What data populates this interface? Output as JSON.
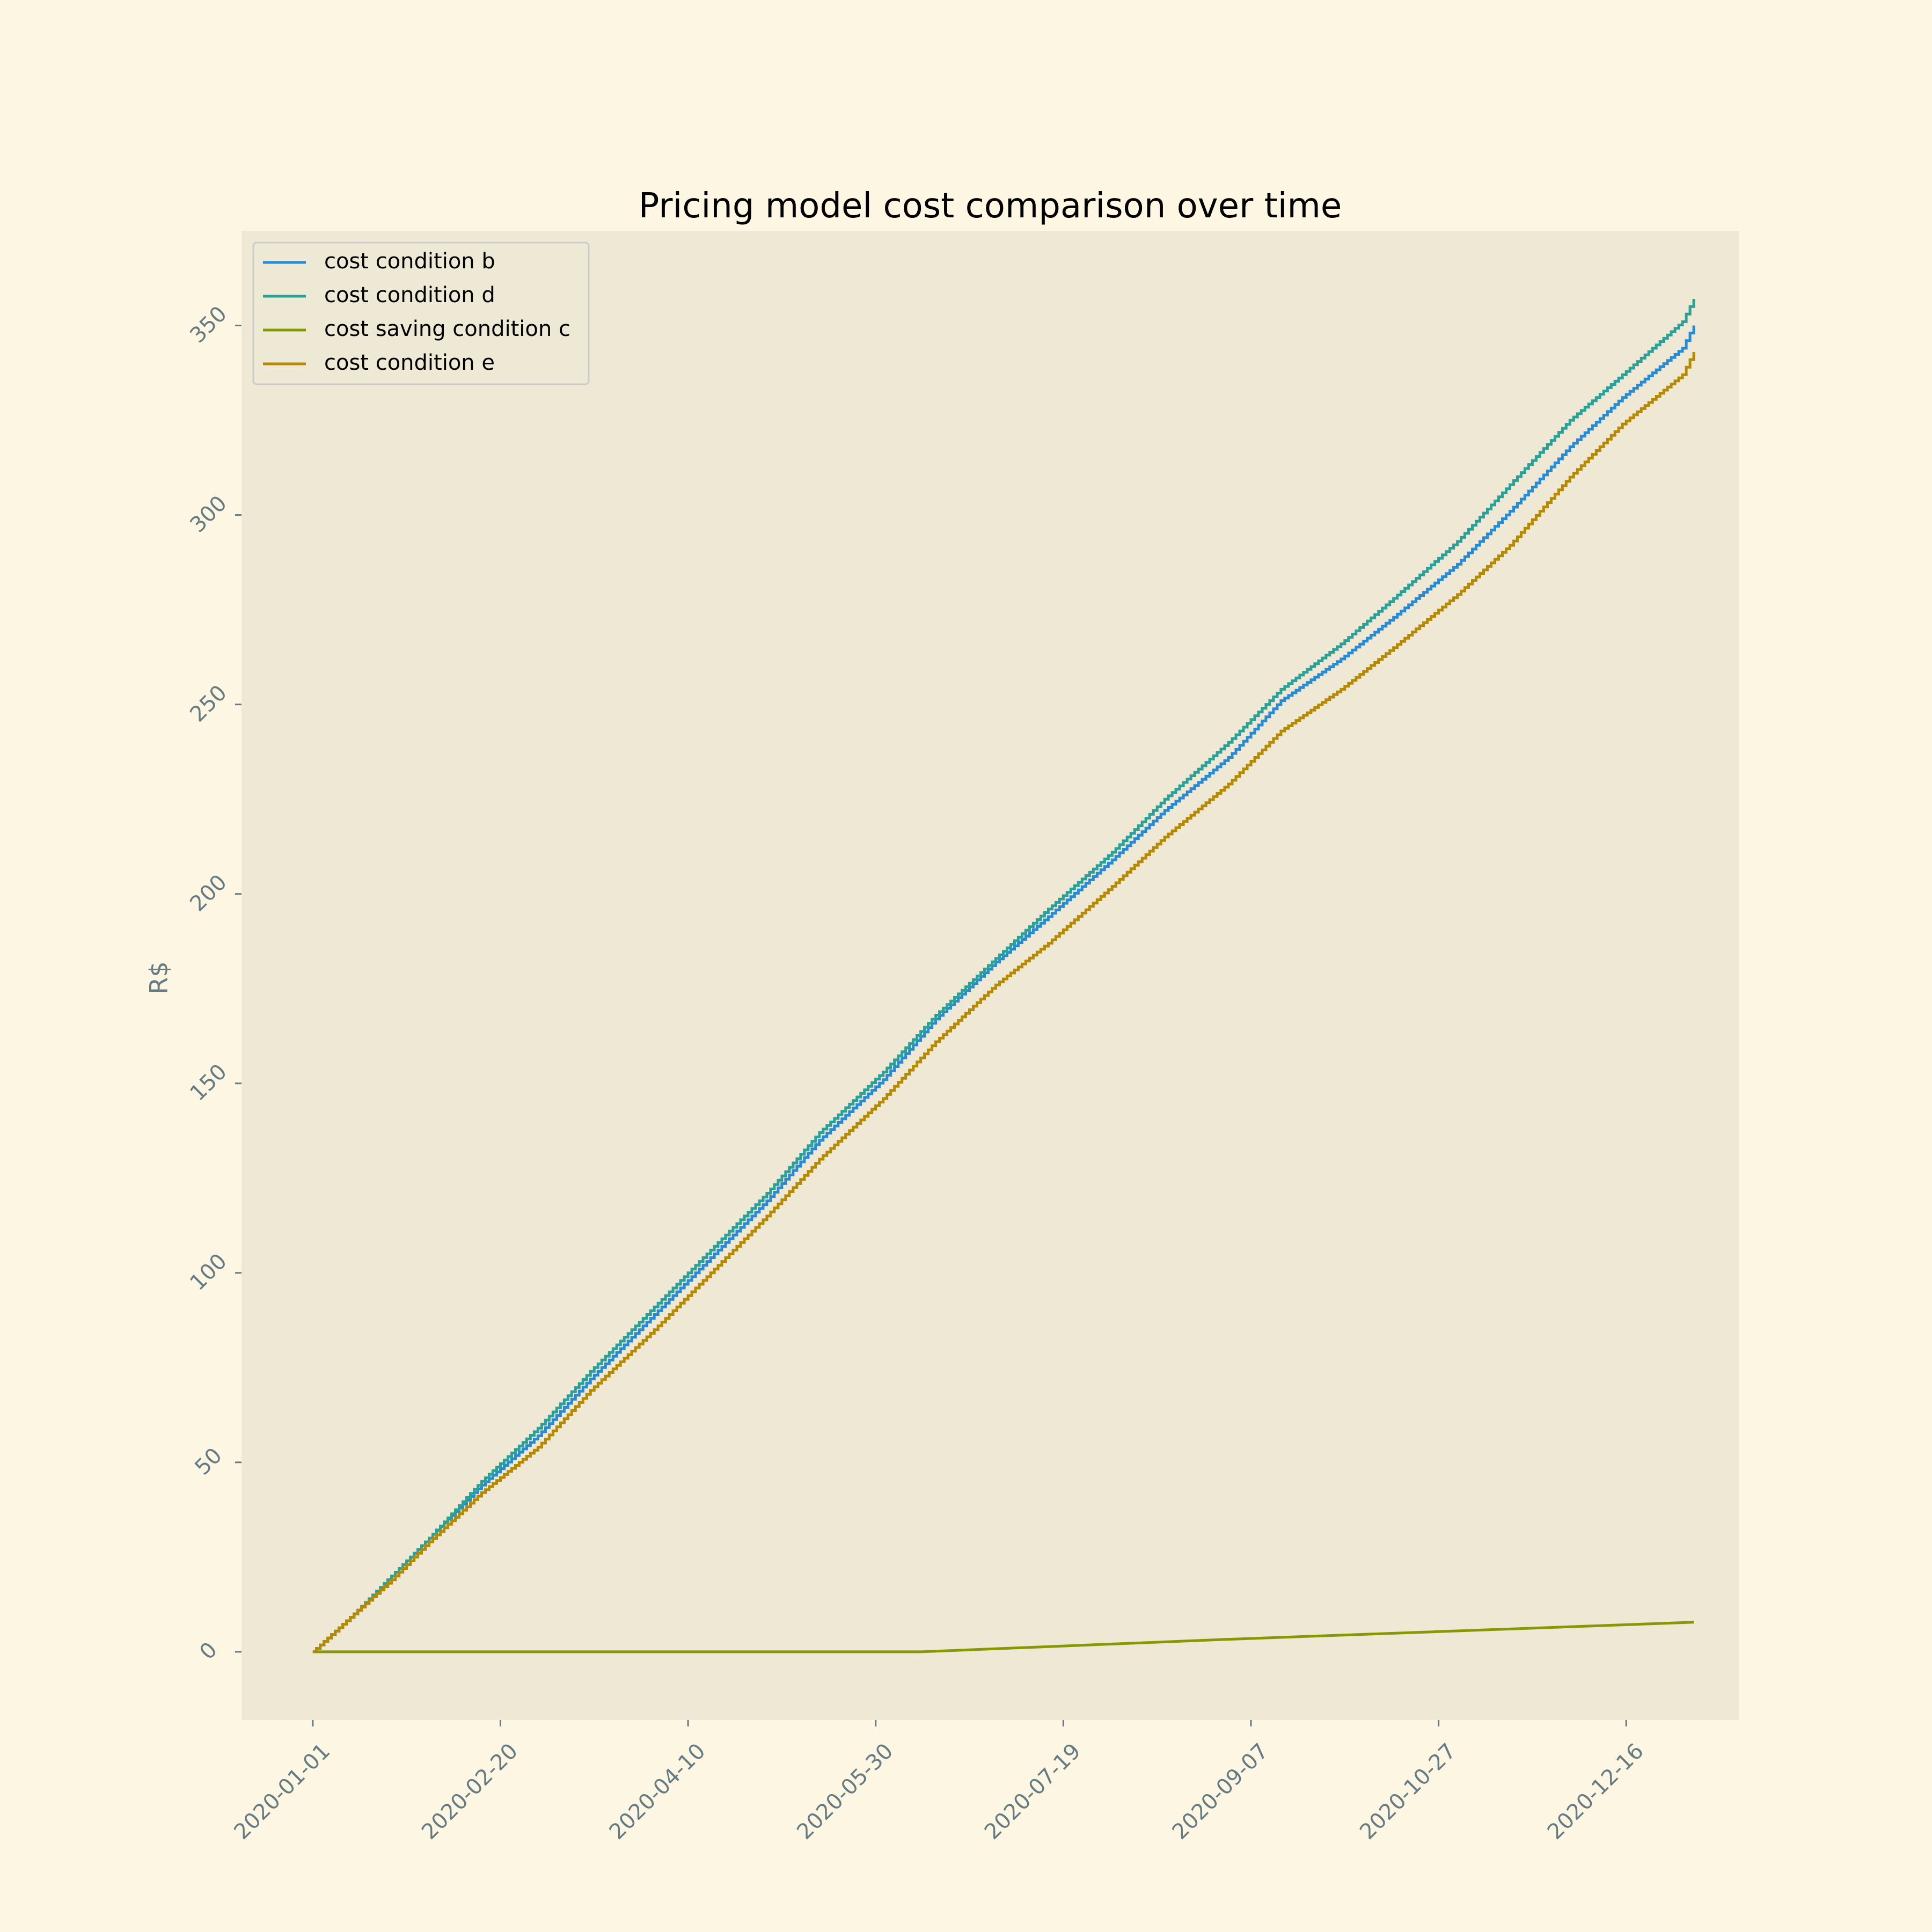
{
  "chart_data": {
    "type": "line",
    "title": "Pricing model cost comparison over time",
    "xlabel": "",
    "ylabel": "R$",
    "x_ticks": [
      "2020-01-01",
      "2020-02-20",
      "2020-04-10",
      "2020-05-30",
      "2020-07-19",
      "2020-09-07",
      "2020-10-27",
      "2020-12-16"
    ],
    "y_ticks": [
      0,
      50,
      100,
      150,
      200,
      250,
      300,
      350
    ],
    "xlim": [
      "2019-12-13",
      "2021-01-15"
    ],
    "ylim": [
      -18,
      375
    ],
    "grid": false,
    "legend_position": "top-left",
    "series": [
      {
        "name": "cost condition b",
        "color": "#268bd2",
        "step": true,
        "points": [
          [
            "2020-01-01",
            0
          ],
          [
            "2020-01-12",
            10
          ],
          [
            "2020-01-22",
            20
          ],
          [
            "2020-02-01",
            30
          ],
          [
            "2020-02-15",
            44
          ],
          [
            "2020-03-01",
            57
          ],
          [
            "2020-03-15",
            72
          ],
          [
            "2020-04-01",
            89
          ],
          [
            "2020-04-15",
            103
          ],
          [
            "2020-05-01",
            119
          ],
          [
            "2020-05-15",
            135
          ],
          [
            "2020-06-01",
            151
          ],
          [
            "2020-06-15",
            167
          ],
          [
            "2020-07-01",
            182
          ],
          [
            "2020-07-15",
            194
          ],
          [
            "2020-08-01",
            209
          ],
          [
            "2020-08-15",
            222
          ],
          [
            "2020-09-01",
            236
          ],
          [
            "2020-09-15",
            251
          ],
          [
            "2020-10-01",
            262
          ],
          [
            "2020-10-15",
            273
          ],
          [
            "2020-11-01",
            287
          ],
          [
            "2020-11-15",
            301
          ],
          [
            "2020-12-01",
            318
          ],
          [
            "2020-12-15",
            331
          ],
          [
            "2020-12-31",
            344
          ],
          [
            "2021-01-03",
            350
          ]
        ]
      },
      {
        "name": "cost condition d",
        "color": "#2aa198",
        "step": true,
        "points": [
          [
            "2020-01-01",
            0
          ],
          [
            "2020-01-12",
            10
          ],
          [
            "2020-01-22",
            20
          ],
          [
            "2020-02-01",
            30
          ],
          [
            "2020-02-15",
            45
          ],
          [
            "2020-03-01",
            59
          ],
          [
            "2020-03-15",
            74
          ],
          [
            "2020-04-01",
            91
          ],
          [
            "2020-04-15",
            105
          ],
          [
            "2020-05-01",
            121
          ],
          [
            "2020-05-15",
            137
          ],
          [
            "2020-06-01",
            153
          ],
          [
            "2020-06-15",
            168
          ],
          [
            "2020-07-01",
            183
          ],
          [
            "2020-07-15",
            196
          ],
          [
            "2020-08-01",
            211
          ],
          [
            "2020-08-15",
            225
          ],
          [
            "2020-09-01",
            240
          ],
          [
            "2020-09-15",
            254
          ],
          [
            "2020-10-01",
            266
          ],
          [
            "2020-10-15",
            278
          ],
          [
            "2020-11-01",
            293
          ],
          [
            "2020-11-15",
            308
          ],
          [
            "2020-12-01",
            325
          ],
          [
            "2020-12-15",
            337
          ],
          [
            "2020-12-31",
            351
          ],
          [
            "2021-01-03",
            357
          ]
        ]
      },
      {
        "name": "cost saving condition c",
        "color": "#859900",
        "step": false,
        "points": [
          [
            "2020-01-01",
            0
          ],
          [
            "2020-06-11",
            0
          ],
          [
            "2020-09-01",
            3.3
          ],
          [
            "2021-01-03",
            7.8
          ]
        ]
      },
      {
        "name": "cost condition e",
        "color": "#b58900",
        "step": true,
        "points": [
          [
            "2020-01-01",
            0
          ],
          [
            "2020-01-12",
            10
          ],
          [
            "2020-01-22",
            19
          ],
          [
            "2020-02-01",
            29
          ],
          [
            "2020-02-15",
            42
          ],
          [
            "2020-03-01",
            54
          ],
          [
            "2020-03-15",
            69
          ],
          [
            "2020-04-01",
            85
          ],
          [
            "2020-04-15",
            99
          ],
          [
            "2020-05-01",
            115
          ],
          [
            "2020-05-15",
            130
          ],
          [
            "2020-06-01",
            146
          ],
          [
            "2020-06-15",
            161
          ],
          [
            "2020-07-01",
            176
          ],
          [
            "2020-07-15",
            187
          ],
          [
            "2020-08-01",
            202
          ],
          [
            "2020-08-15",
            215
          ],
          [
            "2020-09-01",
            229
          ],
          [
            "2020-09-15",
            243
          ],
          [
            "2020-10-01",
            254
          ],
          [
            "2020-10-15",
            265
          ],
          [
            "2020-11-01",
            279
          ],
          [
            "2020-11-15",
            292
          ],
          [
            "2020-12-01",
            310
          ],
          [
            "2020-12-15",
            324
          ],
          [
            "2020-12-31",
            337
          ],
          [
            "2021-01-03",
            343
          ]
        ]
      }
    ]
  },
  "colors": {
    "figure_background": "#fdf6e3",
    "plot_background": "#eee8d5",
    "tick_color": "#657b83"
  }
}
